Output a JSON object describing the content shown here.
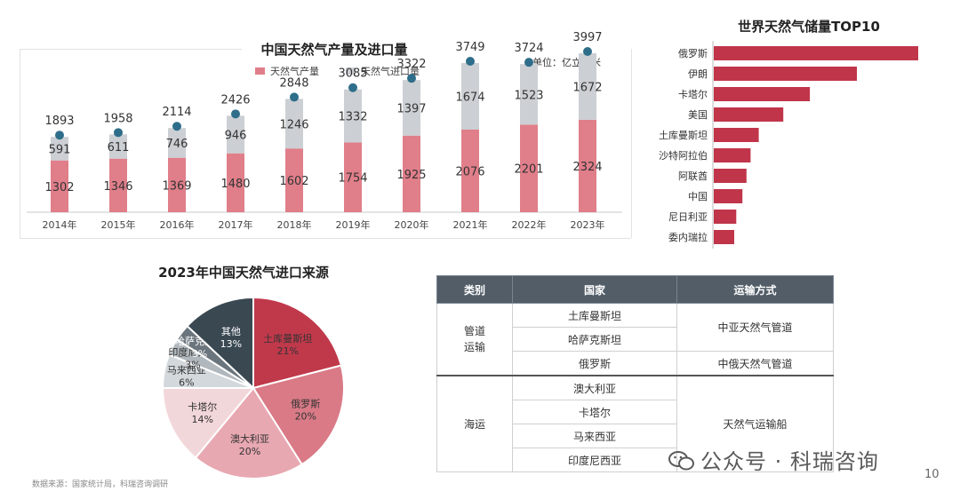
{
  "charts": {
    "production_import": {
      "title": "中国天然气产量及进口量",
      "unit": "单位：亿立方米",
      "legend": [
        "天然气产量",
        "天然气进口量"
      ],
      "colors": {
        "production": "#e07e8a",
        "import": "#cccfd3",
        "marker": "#2e6e8a"
      }
    },
    "reserves": {
      "title": "世界天然气储量TOP10",
      "color": "#c0354a"
    },
    "import_sources": {
      "title": "2023年中国天然气进口来源"
    }
  },
  "chart_data": [
    {
      "type": "bar",
      "stacked": true,
      "title": "中国天然气产量及进口量",
      "categories": [
        "2014年",
        "2015年",
        "2016年",
        "2017年",
        "2018年",
        "2019年",
        "2020年",
        "2021年",
        "2022年",
        "2023年"
      ],
      "series": [
        {
          "name": "天然气产量",
          "values": [
            1302,
            1346,
            1369,
            1480,
            1602,
            1754,
            1925,
            2076,
            2201,
            2324
          ]
        },
        {
          "name": "天然气进口量",
          "values": [
            591,
            611,
            746,
            946,
            1246,
            1332,
            1397,
            1674,
            1523,
            1672
          ]
        }
      ],
      "totals": [
        1893,
        1958,
        2114,
        2426,
        2848,
        3085,
        3322,
        3749,
        3724,
        3997
      ],
      "ylabel": "单位：亿立方米",
      "ylim": [
        0,
        4500
      ],
      "legend": "top",
      "grid": false
    },
    {
      "type": "bar",
      "orientation": "horizontal",
      "title": "世界天然气储量TOP10",
      "categories": [
        "俄罗斯",
        "伊朗",
        "卡塔尔",
        "美国",
        "土库曼斯坦",
        "沙特阿拉伯",
        "阿联酋",
        "中国",
        "尼日利亚",
        "委内瑞拉"
      ],
      "values": [
        100,
        70,
        47,
        34,
        22,
        18,
        16,
        14,
        11,
        10
      ],
      "grid": false
    },
    {
      "type": "pie",
      "title": "2023年中国天然气进口来源",
      "categories": [
        "土库曼斯坦",
        "俄罗斯",
        "澳大利亚",
        "卡塔尔",
        "马来西亚",
        "印度尼西亚",
        "哈萨克斯坦",
        "其他"
      ],
      "values": [
        21,
        20,
        20,
        14,
        6,
        3,
        3,
        13
      ],
      "labels": [
        "21%",
        "20%",
        "20%",
        "14%",
        "6%",
        "3%",
        "3%",
        "13%"
      ],
      "colors": [
        "#c0394b",
        "#d97a86",
        "#e8a8b1",
        "#f2d7da",
        "#d3d8dc",
        "#b1b8bd",
        "#6b757d",
        "#3a4852"
      ]
    }
  ],
  "table": {
    "headers": [
      "类别",
      "国家",
      "运输方式"
    ],
    "pipeline": {
      "category": "管道\n运输",
      "countries": [
        "土库曼斯坦",
        "哈萨克斯坦",
        "俄罗斯"
      ],
      "methods": [
        "中亚天然气管道",
        "中俄天然气管道"
      ]
    },
    "sea": {
      "category": "海运",
      "countries": [
        "澳大利亚",
        "卡塔尔",
        "马来西亚",
        "印度尼西亚"
      ],
      "method": "天然气运输船"
    }
  },
  "footer": {
    "source": "数据来源：国家统计局，科瑞咨询调研",
    "brand": "公众号 · 科瑞咨询",
    "page": "10"
  }
}
